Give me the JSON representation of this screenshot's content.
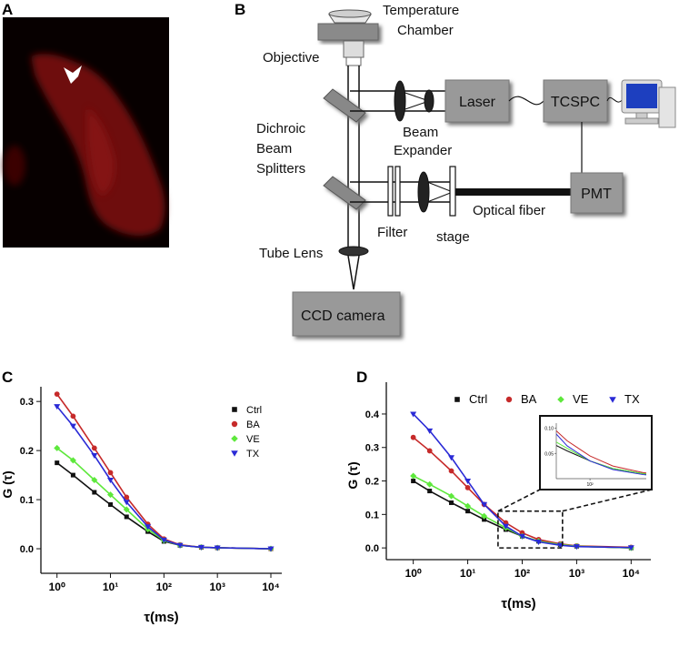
{
  "panels": {
    "a": "A",
    "b": "B",
    "c": "C",
    "d": "D"
  },
  "diagram": {
    "temperature_chamber": [
      "Temperature",
      "Chamber"
    ],
    "objective": "Objective",
    "dichroic": [
      "Dichroic",
      "Beam",
      "Splitters"
    ],
    "beam_expander": [
      "Beam",
      "Expander"
    ],
    "laser": "Laser",
    "tcspc": "TCSPC",
    "pmt": "PMT",
    "filter": "Filter",
    "stage": "stage",
    "optical_fiber": "Optical fiber",
    "tube_lens": "Tube Lens",
    "ccd_camera": "CCD camera"
  },
  "chart_data": [
    {
      "type": "scatter",
      "xscale": "log",
      "xlabel": "τ(ms)",
      "ylabel": "G (τ)",
      "x": [
        1,
        2,
        5,
        10,
        20,
        50,
        100,
        200,
        500,
        1000,
        10000
      ],
      "xlim": [
        0.5,
        16000
      ],
      "xticks": [
        {
          "value": 1,
          "label": "10⁰"
        },
        {
          "value": 10,
          "label": "10¹"
        },
        {
          "value": 100,
          "label": "10²"
        },
        {
          "value": 1000,
          "label": "10³"
        },
        {
          "value": 10000,
          "label": "10⁴"
        }
      ],
      "ylim": [
        -0.05,
        0.33
      ],
      "yticks": [
        {
          "value": 0,
          "label": "0.0"
        },
        0.1,
        0.2,
        0.3
      ],
      "legend": "upper right",
      "series": [
        {
          "name": "Ctrl",
          "color": "#111111",
          "marker": "square",
          "values": [
            0.175,
            0.15,
            0.115,
            0.09,
            0.065,
            0.035,
            0.015,
            0.007,
            0.003,
            0.002,
            0
          ]
        },
        {
          "name": "BA",
          "color": "#c62a2a",
          "marker": "circle",
          "values": [
            0.315,
            0.27,
            0.205,
            0.155,
            0.105,
            0.05,
            0.02,
            0.008,
            0.003,
            0.002,
            0
          ]
        },
        {
          "name": "VE",
          "color": "#5ee83c",
          "marker": "diamond",
          "values": [
            0.205,
            0.18,
            0.14,
            0.11,
            0.08,
            0.04,
            0.017,
            0.007,
            0.003,
            0.002,
            0
          ]
        },
        {
          "name": "TX",
          "color": "#2a2ad6",
          "marker": "triangle",
          "values": [
            0.29,
            0.25,
            0.19,
            0.14,
            0.095,
            0.045,
            0.018,
            0.007,
            0.003,
            0.002,
            0
          ]
        }
      ]
    },
    {
      "type": "scatter",
      "xscale": "log",
      "xlabel": "τ(ms)",
      "ylabel": "G (τ)",
      "x": [
        1,
        2,
        5,
        10,
        20,
        50,
        100,
        200,
        500,
        1000,
        10000
      ],
      "xlim": [
        0.32,
        23000
      ],
      "xticks": [
        {
          "value": 1,
          "label": "10⁰"
        },
        {
          "value": 10,
          "label": "10¹"
        },
        {
          "value": 100,
          "label": "10²"
        },
        {
          "value": 1000,
          "label": "10³"
        },
        {
          "value": 10000,
          "label": "10⁴"
        }
      ],
      "ylim": [
        -0.035,
        0.495
      ],
      "yticks": [
        {
          "value": 0,
          "label": "0.0"
        },
        0.1,
        0.2,
        0.3,
        0.4
      ],
      "legend": "top",
      "series": [
        {
          "name": "Ctrl",
          "color": "#111111",
          "marker": "square",
          "values": [
            0.2,
            0.17,
            0.135,
            0.11,
            0.085,
            0.055,
            0.035,
            0.02,
            0.01,
            0.005,
            0
          ]
        },
        {
          "name": "BA",
          "color": "#c62a2a",
          "marker": "circle",
          "values": [
            0.33,
            0.29,
            0.23,
            0.18,
            0.13,
            0.075,
            0.045,
            0.025,
            0.012,
            0.006,
            0.002
          ]
        },
        {
          "name": "VE",
          "color": "#5ee83c",
          "marker": "diamond",
          "values": [
            0.215,
            0.19,
            0.155,
            0.125,
            0.095,
            0.06,
            0.035,
            0.02,
            0.01,
            0.005,
            0
          ]
        },
        {
          "name": "TX",
          "color": "#2a2ad6",
          "marker": "triangle",
          "values": [
            0.4,
            0.35,
            0.27,
            0.2,
            0.13,
            0.065,
            0.035,
            0.018,
            0.008,
            0.004,
            0.001
          ]
        }
      ],
      "inset": {
        "xlim": [
          36,
          550
        ],
        "ylim": [
          0,
          0.11
        ],
        "yticks": [
          {
            "value": 0.1,
            "label": "0.10"
          },
          {
            "value": 0.05,
            "label": "0.05"
          }
        ],
        "xticks": [
          {
            "value": 100,
            "label": "10²"
          }
        ]
      }
    }
  ]
}
